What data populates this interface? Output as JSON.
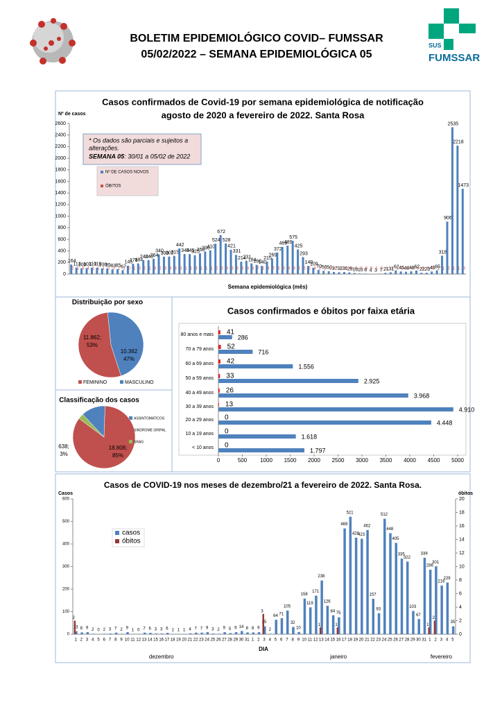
{
  "header": {
    "title_line1": "BOLETIM EPIDEMIOLÓGICO COVID– FUMSSAR",
    "title_line2": "05/02/2022 – SEMANA EPIDEMIOLÓGICA 05",
    "logo_sus": "SUS",
    "logo_name": "FUMSSAR"
  },
  "chart_data": [
    {
      "type": "bar",
      "title": "Casos confirmados de Covid-19 por semana epidemiológica de notificação",
      "subtitle": "agosto de 2020 a fevereiro de 2022. Santa Rosa",
      "y_label": "Nº de casos",
      "x_label": "Semana epidemiológica (mês)",
      "note_line1": "* Os dados são parciais e sujeitos a",
      "note_line2": "alterações.",
      "note_week": "SEMANA 05",
      "note_range": ": 30/01 a 05/02 de 2022",
      "ylim": [
        0,
        2600
      ],
      "yticks": [
        0,
        200,
        400,
        600,
        800,
        1000,
        1200,
        1400,
        1600,
        1800,
        2000,
        2200,
        2400,
        2600
      ],
      "series": [
        {
          "name": "Nº DE CASOS NOVOS",
          "color": "#4f81bd",
          "values": [
            164,
            113,
            100,
            103,
            110,
            110,
            100,
            95,
            83,
            85,
            67,
            145,
            178,
            184,
            240,
            240,
            264,
            340,
            300,
            302,
            315,
            442,
            346,
            345,
            325,
            358,
            390,
            410,
            524,
            672,
            528,
            421,
            331,
            214,
            231,
            184,
            160,
            140,
            215,
            269,
            372,
            469,
            489,
            575,
            425,
            293,
            140,
            109,
            70,
            56,
            50,
            37,
            32,
            36,
            28,
            18,
            10,
            8,
            4,
            3,
            7,
            21,
            31,
            62,
            45,
            40,
            48,
            62,
            22,
            23,
            45,
            65,
            318,
            906,
            2535,
            2218,
            1473
          ]
        },
        {
          "name": "ÓBITOS",
          "color": "#c0504d",
          "values": [
            2,
            1,
            4,
            4,
            1,
            1,
            1,
            0,
            0,
            1,
            2,
            0,
            1,
            3,
            2,
            1,
            3,
            2,
            3,
            3,
            4,
            5,
            1,
            1,
            3,
            1,
            1,
            1,
            2,
            5,
            8,
            8,
            6,
            6,
            3,
            4,
            7,
            2,
            4,
            7,
            5,
            8,
            8,
            9,
            6,
            6,
            2,
            4,
            2,
            1,
            1,
            0,
            1,
            1,
            0,
            0,
            0,
            0,
            0,
            1,
            0,
            1,
            1,
            1,
            0,
            0,
            0,
            0,
            0,
            0,
            0,
            1,
            1,
            2,
            1,
            1,
            3
          ]
        }
      ]
    },
    {
      "type": "pie",
      "title": "Distribuição por sexo",
      "categories": [
        "FEMININO",
        "MASCULINO"
      ],
      "values": [
        11862,
        10362
      ],
      "value_labels": [
        "11.862;",
        "10.362"
      ],
      "percent_labels": [
        "53%",
        "47%"
      ],
      "colors": [
        "#c0504d",
        "#4f81bd"
      ]
    },
    {
      "type": "pie",
      "title": "Classificação dos casos",
      "categories": [
        "ASSINTOMATICOS",
        "SINDROME GRIPAL",
        "SRAG"
      ],
      "values": [
        2778,
        18808,
        638
      ],
      "value_labels": [
        "2.778;",
        "18.808;",
        "638;"
      ],
      "percent_labels": [
        "12%",
        "85%",
        "3%"
      ],
      "colors": [
        "#4f81bd",
        "#c0504d",
        "#9bbb59"
      ]
    },
    {
      "type": "hbar",
      "title": "Casos confirmados e óbitos  por faixa etária",
      "categories": [
        "80 anos e mais",
        "70 a 79 anos",
        "60 a 69 anos",
        "50 a 59 anos",
        "40 a 49 anos",
        "30 a 39 anos",
        "20 a 29 anos",
        "10 a 19 anos",
        "< 10 anos"
      ],
      "xlim": [
        0,
        5000
      ],
      "xticks": [
        0,
        500,
        1000,
        1500,
        2000,
        2500,
        3000,
        3500,
        4000,
        4500,
        5000
      ],
      "series": [
        {
          "name": "casos",
          "color": "#4f81bd",
          "values": [
            286,
            716,
            1556,
            2925,
            3968,
            4910,
            4448,
            1618,
            1797
          ],
          "value_labels": [
            "286",
            "716",
            "1.556",
            "2.925",
            "3.968",
            "4.910",
            "4.448",
            "1.618",
            "1.797"
          ]
        },
        {
          "name": "óbitos",
          "color": "#e02020",
          "values": [
            41,
            52,
            42,
            33,
            26,
            13,
            0,
            0,
            0
          ]
        }
      ]
    },
    {
      "type": "bar",
      "title": "Casos de COVID-19 nos meses de dezembro/21  a fevereiro de 2022. Santa Rosa.",
      "y_label": "Casos",
      "y2_label": "óbitos",
      "x_label": "DIA",
      "months": [
        "dezembro",
        "janeiro",
        "fevereiro"
      ],
      "categories": [
        "1",
        "2",
        "3",
        "4",
        "5",
        "6",
        "7",
        "8",
        "9",
        "10",
        "11",
        "12",
        "13",
        "14",
        "15",
        "16",
        "17",
        "18",
        "19",
        "20",
        "21",
        "22",
        "23",
        "24",
        "25",
        "26",
        "27",
        "28",
        "29",
        "30",
        "31",
        "1",
        "2",
        "3",
        "4",
        "5",
        "6",
        "7",
        "8",
        "9",
        "10",
        "11",
        "12",
        "13",
        "14",
        "15",
        "16",
        "17",
        "18",
        "19",
        "20",
        "21",
        "22",
        "23",
        "24",
        "25",
        "26",
        "27",
        "28",
        "29",
        "30",
        "31",
        "1",
        "2",
        "3",
        "4",
        "5"
      ],
      "ylim": [
        0,
        600
      ],
      "yticks": [
        0,
        100,
        200,
        300,
        400,
        500,
        600
      ],
      "y2lim": [
        0,
        20
      ],
      "y2ticks": [
        0,
        2,
        4,
        6,
        8,
        10,
        12,
        14,
        16,
        18,
        20
      ],
      "series": [
        {
          "name": "casos",
          "color": "#4f81bd",
          "values": [
            13,
            8,
            9,
            2,
            0,
            2,
            3,
            7,
            2,
            9,
            1,
            0,
            7,
            6,
            3,
            3,
            6,
            1,
            1,
            1,
            4,
            7,
            7,
            9,
            3,
            2,
            9,
            5,
            9,
            14,
            8,
            8,
            9,
            35,
            2,
            64,
            71,
            105,
            32,
            10,
            158,
            119,
            171,
            238,
            126,
            84,
            75,
            469,
            521,
            428,
            423,
            462,
            157,
            93,
            512,
            448,
            405,
            335,
            322,
            103,
            67,
            339,
            286,
            301,
            216,
            229,
            35
          ]
        },
        {
          "name": "óbitos",
          "color": "#953735",
          "axis": "y2",
          "values": [
            2,
            0,
            0,
            0,
            0,
            0,
            0,
            0,
            0,
            0,
            0,
            0,
            0,
            0,
            0,
            0,
            0,
            0,
            0,
            0,
            0,
            0,
            0,
            0,
            0,
            0,
            0,
            0,
            0,
            0,
            0,
            0,
            0,
            3,
            0,
            0,
            0,
            0,
            0,
            0,
            0,
            0,
            0,
            1,
            0,
            0,
            1,
            0,
            0,
            0,
            0,
            0,
            0,
            0,
            0,
            0,
            0,
            0,
            0,
            0,
            0,
            0,
            1,
            2,
            0,
            0,
            0
          ]
        }
      ]
    }
  ]
}
